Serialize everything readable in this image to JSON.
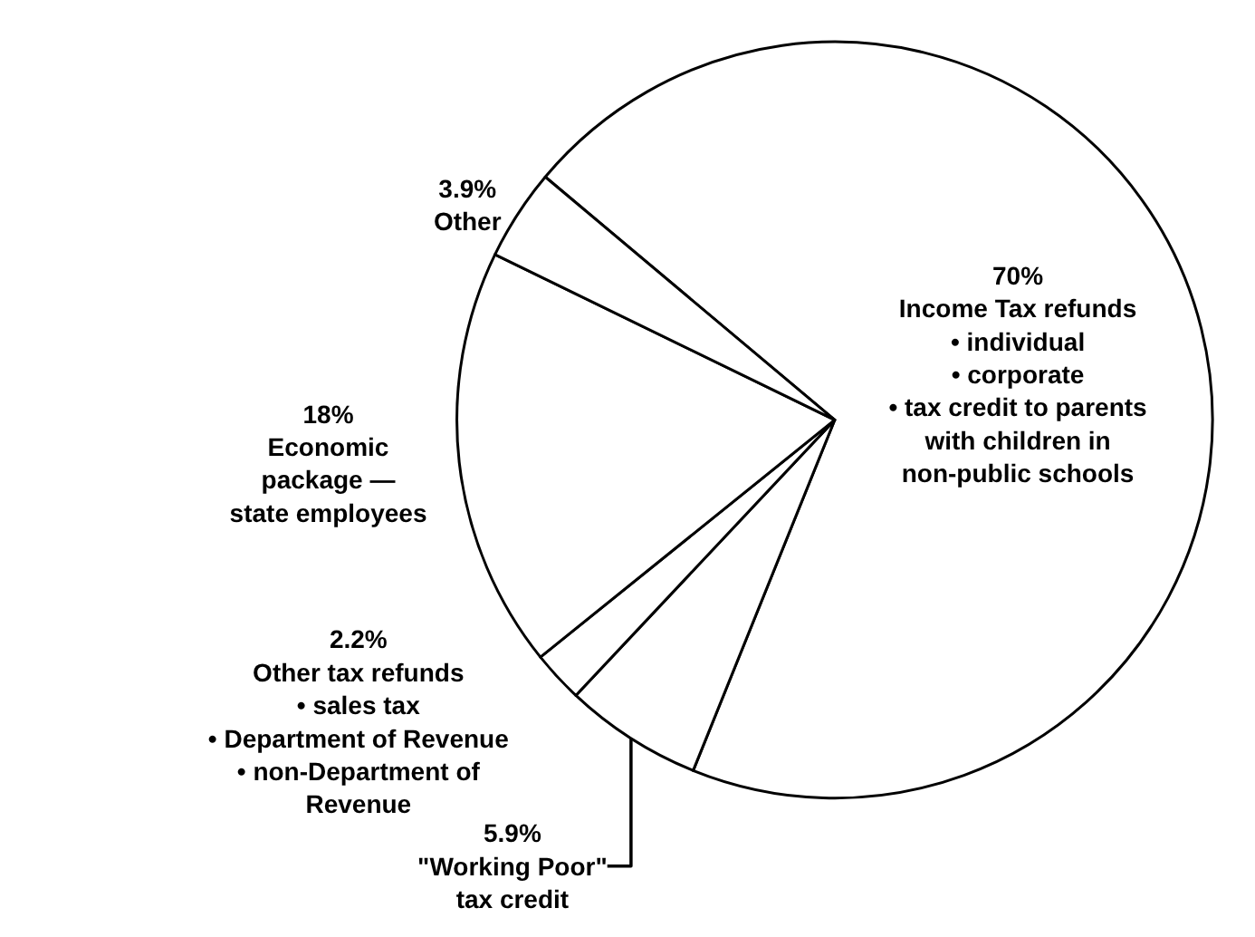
{
  "chart_data": {
    "type": "pie",
    "categories": [
      "Income Tax refunds\n• individual\n• corporate\n• tax credit to parents\nwith children in\nnon-public schools",
      "\"Working Poor\"\ntax credit",
      "Other tax refunds\n• sales tax\n• Department of Revenue\n• non-Department of\nRevenue",
      "Economic\npackage —\nstate employees",
      "Other"
    ],
    "values": [
      70,
      5.9,
      2.2,
      18,
      3.9
    ],
    "colors": [
      "#ffffff",
      "#ffffff",
      "#ffffff",
      "#ffffff",
      "#ffffff"
    ],
    "value_labels": [
      "70%",
      "5.9%",
      "2.2%",
      "18%",
      "3.9%"
    ],
    "legend": false
  }
}
